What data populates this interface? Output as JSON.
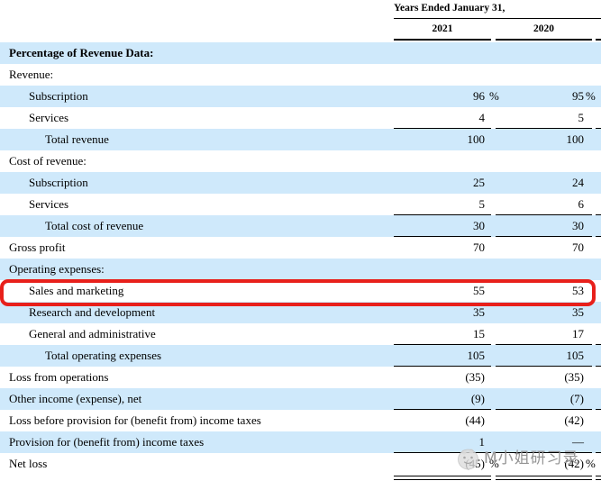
{
  "table": {
    "period_header": "Years Ended January 31,",
    "col_2021": "2021",
    "col_2020": "2020",
    "rows": [
      {
        "label": "Percentage of Revenue Data:",
        "indent": 0,
        "bold": true,
        "shaded": true,
        "v2021": "",
        "p2021": "",
        "v2020": "",
        "p2020": "",
        "rule": "none",
        "highlighted": false
      },
      {
        "label": "Revenue:",
        "indent": 0,
        "bold": false,
        "shaded": false,
        "v2021": "",
        "p2021": "",
        "v2020": "",
        "p2020": "",
        "rule": "none",
        "highlighted": false
      },
      {
        "label": "Subscription",
        "indent": 1,
        "bold": false,
        "shaded": true,
        "v2021": "96",
        "p2021": "%",
        "v2020": "95",
        "p2020": "%",
        "rule": "none",
        "highlighted": false
      },
      {
        "label": "Services",
        "indent": 1,
        "bold": false,
        "shaded": false,
        "v2021": "4",
        "p2021": "",
        "v2020": "5",
        "p2020": "",
        "rule": "single",
        "highlighted": false
      },
      {
        "label": "Total revenue",
        "indent": 2,
        "bold": false,
        "shaded": true,
        "v2021": "100",
        "p2021": "",
        "v2020": "100",
        "p2020": "",
        "rule": "none",
        "highlighted": false
      },
      {
        "label": "Cost of revenue:",
        "indent": 0,
        "bold": false,
        "shaded": false,
        "v2021": "",
        "p2021": "",
        "v2020": "",
        "p2020": "",
        "rule": "none",
        "highlighted": false
      },
      {
        "label": "Subscription",
        "indent": 1,
        "bold": false,
        "shaded": true,
        "v2021": "25",
        "p2021": "",
        "v2020": "24",
        "p2020": "",
        "rule": "none",
        "highlighted": false
      },
      {
        "label": "Services",
        "indent": 1,
        "bold": false,
        "shaded": false,
        "v2021": "5",
        "p2021": "",
        "v2020": "6",
        "p2020": "",
        "rule": "single",
        "highlighted": false
      },
      {
        "label": "Total cost of revenue",
        "indent": 2,
        "bold": false,
        "shaded": true,
        "v2021": "30",
        "p2021": "",
        "v2020": "30",
        "p2020": "",
        "rule": "single",
        "highlighted": false
      },
      {
        "label": "Gross profit",
        "indent": 0,
        "bold": false,
        "shaded": false,
        "v2021": "70",
        "p2021": "",
        "v2020": "70",
        "p2020": "",
        "rule": "none",
        "highlighted": false
      },
      {
        "label": "Operating expenses:",
        "indent": 0,
        "bold": false,
        "shaded": true,
        "v2021": "",
        "p2021": "",
        "v2020": "",
        "p2020": "",
        "rule": "none",
        "highlighted": false
      },
      {
        "label": "Sales and marketing",
        "indent": 1,
        "bold": false,
        "shaded": false,
        "v2021": "55",
        "p2021": "",
        "v2020": "53",
        "p2020": "",
        "rule": "none",
        "highlighted": true
      },
      {
        "label": "Research and development",
        "indent": 1,
        "bold": false,
        "shaded": true,
        "v2021": "35",
        "p2021": "",
        "v2020": "35",
        "p2020": "",
        "rule": "none",
        "highlighted": false
      },
      {
        "label": "General and administrative",
        "indent": 1,
        "bold": false,
        "shaded": false,
        "v2021": "15",
        "p2021": "",
        "v2020": "17",
        "p2020": "",
        "rule": "single",
        "highlighted": false
      },
      {
        "label": "Total operating expenses",
        "indent": 2,
        "bold": false,
        "shaded": true,
        "v2021": "105",
        "p2021": "",
        "v2020": "105",
        "p2020": "",
        "rule": "single",
        "highlighted": false
      },
      {
        "label": "Loss from operations",
        "indent": 0,
        "bold": false,
        "shaded": false,
        "v2021": "(35)",
        "p2021": "",
        "v2020": "(35)",
        "p2020": "",
        "rule": "none",
        "highlighted": false
      },
      {
        "label": "Other income (expense), net",
        "indent": 0,
        "bold": false,
        "shaded": true,
        "v2021": "(9)",
        "p2021": "",
        "v2020": "(7)",
        "p2020": "",
        "rule": "single",
        "highlighted": false
      },
      {
        "label": "Loss before provision for (benefit from) income taxes",
        "indent": 0,
        "bold": false,
        "shaded": false,
        "v2021": "(44)",
        "p2021": "",
        "v2020": "(42)",
        "p2020": "",
        "rule": "none",
        "highlighted": false
      },
      {
        "label": "Provision for (benefit from) income taxes",
        "indent": 0,
        "bold": false,
        "shaded": true,
        "v2021": "1",
        "p2021": "",
        "v2020": "—",
        "p2020": "",
        "rule": "single",
        "highlighted": false
      },
      {
        "label": "Net loss",
        "indent": 0,
        "bold": false,
        "shaded": false,
        "v2021": "(45)",
        "p2021": "%",
        "v2020": "(42)",
        "p2020": "%",
        "rule": "double",
        "highlighted": false
      }
    ]
  },
  "annotation": {
    "type": "red-rounded-rectangle",
    "highlighted_row": "Sales and marketing"
  },
  "watermark": {
    "text": "M小姐研习录",
    "logo": "cat-face-logo"
  },
  "colors": {
    "row_shade": "#cfe9fb",
    "rule": "#000000",
    "highlight_red": "#e8201b",
    "watermark_gray": "#949494"
  }
}
